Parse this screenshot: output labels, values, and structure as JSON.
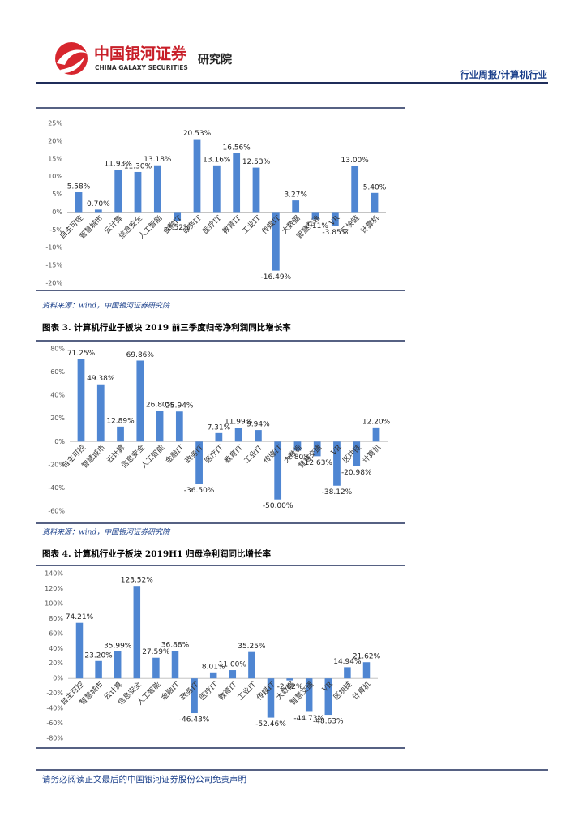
{
  "header": {
    "company": "中国银河证券",
    "company_en": "CHINA GALAXY SECURITIES",
    "institute": "研究院",
    "report_type": "行业周报/计算机行业"
  },
  "chart_data": [
    {
      "type": "bar",
      "color": "#4f86d2",
      "categories": [
        "自主可控",
        "智慧城市",
        "云计算",
        "信息安全",
        "人工智能",
        "金融IT",
        "政务IT",
        "医疗IT",
        "教育IT",
        "工业IT",
        "传媒IT",
        "大数据",
        "智慧交通",
        "VR",
        "区块链",
        "计算机"
      ],
      "values": [
        5.58,
        0.7,
        11.93,
        11.3,
        13.18,
        -2.52,
        20.53,
        13.16,
        16.56,
        12.53,
        -16.49,
        3.27,
        -2.11,
        -3.85,
        13.0,
        5.4
      ],
      "value_labels": [
        "5.58%",
        "0.70%",
        "11.93%",
        "11.30%",
        "13.18%",
        "-2.52%",
        "20.53%",
        "13.16%",
        "16.56%",
        "12.53%",
        "-16.49%",
        "3.27%",
        "-2.11%",
        "-3.85%",
        "13.00%",
        "5.40%"
      ],
      "ylim": [
        -20,
        25
      ],
      "yticks": [
        {
          "value": -20,
          "label": "-20%"
        },
        {
          "value": -15,
          "label": "-15%"
        },
        {
          "value": -10,
          "label": "-10%"
        },
        {
          "value": -5,
          "label": "-5%"
        },
        {
          "value": 0,
          "label": "0%"
        },
        {
          "value": 5,
          "label": "5%"
        },
        {
          "value": 10,
          "label": "10%"
        },
        {
          "value": 15,
          "label": "15%"
        },
        {
          "value": 20,
          "label": "20%"
        },
        {
          "value": 25,
          "label": "25%"
        }
      ],
      "source": "资料来源：wind，中国银河证券研究院"
    },
    {
      "type": "bar",
      "color": "#4f86d2",
      "title": "图表 3. 计算机行业子板块 2019 前三季度归母净利润同比增长率",
      "categories": [
        "自主可控",
        "智慧城市",
        "云计算",
        "信息安全",
        "人工智能",
        "金融IT",
        "政务IT",
        "医疗IT",
        "教育IT",
        "工业IT",
        "传媒IT",
        "大数据",
        "智慧交通",
        "VR",
        "区块链",
        "计算机"
      ],
      "values": [
        71.25,
        49.38,
        12.89,
        69.86,
        26.8,
        25.94,
        -36.5,
        7.31,
        11.99,
        9.94,
        -50.0,
        -7.8,
        -12.63,
        -38.12,
        -20.98,
        12.2
      ],
      "value_labels": [
        "71.25%",
        "49.38%",
        "12.89%",
        "69.86%",
        "26.80%",
        "25.94%",
        "-36.50%",
        "7.31%",
        "11.99%",
        "9.94%",
        "-50.00%",
        "-7.80%",
        "-12.63%",
        "-38.12%",
        "-20.98%",
        "12.20%"
      ],
      "ylim": [
        -60,
        80
      ],
      "yticks": [
        {
          "value": -60,
          "label": "-60%"
        },
        {
          "value": -40,
          "label": "-40%"
        },
        {
          "value": -20,
          "label": "-20%"
        },
        {
          "value": 0,
          "label": "0%"
        },
        {
          "value": 20,
          "label": "20%"
        },
        {
          "value": 40,
          "label": "40%"
        },
        {
          "value": 60,
          "label": "60%"
        },
        {
          "value": 80,
          "label": "80%"
        }
      ],
      "source": "资料来源：wind，中国银河证券研究院"
    },
    {
      "type": "bar",
      "color": "#4f86d2",
      "title": "图表 4. 计算机行业子板块 2019H1 归母净利润同比增长率",
      "categories": [
        "自主可控",
        "智慧城市",
        "云计算",
        "信息安全",
        "人工智能",
        "金融IT",
        "政务IT",
        "医疗IT",
        "教育IT",
        "工业IT",
        "传媒IT",
        "大数据",
        "智慧交通",
        "VR",
        "区块链",
        "计算机"
      ],
      "values": [
        74.21,
        23.2,
        35.99,
        123.52,
        27.59,
        36.88,
        -46.43,
        8.01,
        11.0,
        35.25,
        -52.46,
        -2.62,
        -44.73,
        -48.63,
        14.94,
        21.62
      ],
      "value_labels": [
        "74.21%",
        "23.20%",
        "35.99%",
        "123.52%",
        "27.59%",
        "36.88%",
        "-46.43%",
        "8.01%",
        "11.00%",
        "35.25%",
        "-52.46%",
        "-2.62%",
        "-44.73%",
        "-48.63%",
        "14.94%",
        "21.62%"
      ],
      "ylim": [
        -80,
        140
      ],
      "yticks": [
        {
          "value": -80,
          "label": "-80%"
        },
        {
          "value": -60,
          "label": "-60%"
        },
        {
          "value": -40,
          "label": "-40%"
        },
        {
          "value": -20,
          "label": "-20%"
        },
        {
          "value": 0,
          "label": "0%"
        },
        {
          "value": 20,
          "label": "20%"
        },
        {
          "value": 40,
          "label": "40%"
        },
        {
          "value": 60,
          "label": "60%"
        },
        {
          "value": 80,
          "label": "80%"
        },
        {
          "value": 100,
          "label": "100%"
        },
        {
          "value": 120,
          "label": "120%"
        },
        {
          "value": 140,
          "label": "140%"
        }
      ]
    }
  ],
  "footer": "请务必阅读正文最后的中国银河证券股份公司免责声明"
}
